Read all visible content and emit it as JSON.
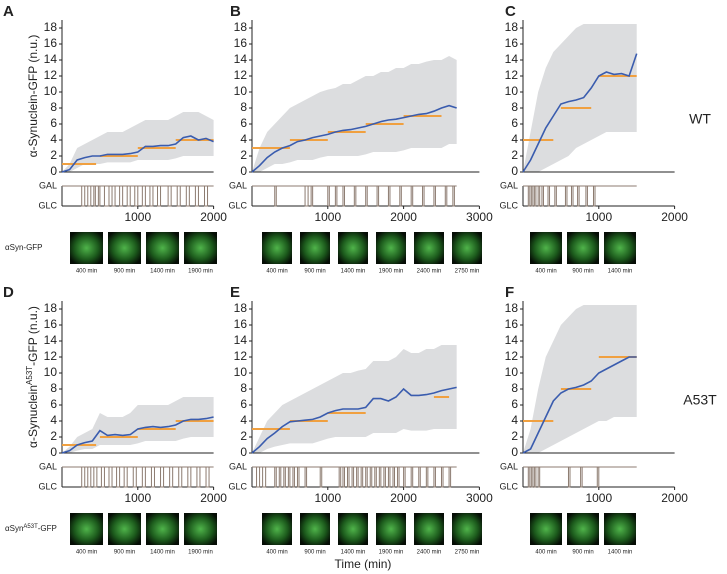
{
  "figure": {
    "xlabel": "Time (min)",
    "rows": [
      {
        "genotype": "WT",
        "ylabel": [
          "α-Synuclein-GFP (n.u.)"
        ],
        "image_label": [
          "αSyn-GFP"
        ]
      },
      {
        "genotype": "A53T",
        "ylabel": [
          "α-Synuclein",
          "A53T",
          "-GFP (n.u.)"
        ],
        "image_label": [
          "αSyn",
          "A53T",
          "-GFP"
        ]
      }
    ]
  },
  "chart_data": [
    {
      "type": "line",
      "panel": "A",
      "xlim": [
        0,
        2000
      ],
      "xticks": [
        1000,
        2000
      ],
      "ylim": [
        0,
        19
      ],
      "yticks": [
        0,
        2,
        4,
        6,
        8,
        10,
        12,
        14,
        16,
        18
      ],
      "color": "#3a5cae",
      "band_color": "#dcdddf",
      "level_color": "#f0a040",
      "x": [
        0,
        100,
        200,
        300,
        400,
        500,
        600,
        700,
        800,
        900,
        1000,
        1100,
        1200,
        1300,
        1400,
        1500,
        1600,
        1700,
        1800,
        1900,
        2000
      ],
      "values": [
        0,
        0.3,
        1.5,
        1.8,
        2,
        2,
        2.2,
        2.2,
        2.2,
        2.3,
        2.5,
        3.2,
        3.2,
        3.3,
        3.3,
        3.5,
        4.3,
        4.5,
        4,
        4.2,
        3.8
      ],
      "band_upper": [
        0,
        1,
        3,
        3.5,
        4,
        4.5,
        5,
        5,
        5,
        5.5,
        6,
        6.5,
        6.5,
        6.5,
        6.5,
        7,
        7.5,
        7.5,
        7.5,
        7,
        6.5
      ],
      "band_lower": [
        0,
        0,
        0.5,
        1,
        1,
        1,
        1.2,
        1.2,
        1.2,
        1.2,
        1.5,
        1.5,
        1.5,
        1.5,
        1.5,
        1.7,
        2,
        2,
        2,
        2,
        2
      ],
      "levels": [
        {
          "start": 0,
          "end": 450,
          "value": 1
        },
        {
          "start": 500,
          "end": 1000,
          "value": 2
        },
        {
          "start": 1000,
          "end": 1500,
          "value": 3
        },
        {
          "start": 1500,
          "end": 2000,
          "value": 4
        }
      ],
      "switch_labels": [
        "GAL",
        "GLC"
      ],
      "pulses": [
        [
          260,
          300
        ],
        [
          340,
          380
        ],
        [
          420,
          440
        ],
        [
          480,
          500
        ],
        [
          560,
          620
        ],
        [
          660,
          700
        ],
        [
          760,
          800
        ],
        [
          860,
          900
        ],
        [
          960,
          1000
        ],
        [
          1060,
          1100
        ],
        [
          1160,
          1200
        ],
        [
          1260,
          1300
        ],
        [
          1400,
          1440
        ],
        [
          1520,
          1560
        ],
        [
          1640,
          1680
        ],
        [
          1760,
          1800
        ],
        [
          1880,
          1920
        ]
      ],
      "image_times": [
        "400 min",
        "900 min",
        "1400 min",
        "1900 min"
      ]
    },
    {
      "type": "line",
      "panel": "B",
      "xlim": [
        0,
        3000
      ],
      "xticks": [
        1000,
        2000,
        3000
      ],
      "ylim": [
        0,
        19
      ],
      "yticks": [
        0,
        2,
        4,
        6,
        8,
        10,
        12,
        14,
        16,
        18
      ],
      "color": "#3a5cae",
      "band_color": "#dcdddf",
      "level_color": "#f0a040",
      "x": [
        0,
        100,
        200,
        300,
        400,
        500,
        600,
        700,
        800,
        900,
        1000,
        1100,
        1200,
        1300,
        1400,
        1500,
        1600,
        1700,
        1800,
        1900,
        2000,
        2100,
        2200,
        2300,
        2400,
        2500,
        2600,
        2700
      ],
      "values": [
        0,
        0.8,
        1.8,
        2.5,
        3,
        3.3,
        3.8,
        4,
        4.3,
        4.5,
        4.7,
        5,
        5.2,
        5.3,
        5.5,
        5.7,
        6,
        6.3,
        6.5,
        6.6,
        6.8,
        7,
        7.2,
        7.3,
        7.6,
        8,
        8.3,
        8
      ],
      "band_upper": [
        0,
        3,
        5,
        6,
        7,
        8,
        8.5,
        9,
        9.5,
        10,
        10.3,
        10.5,
        11,
        11,
        11.5,
        12,
        12,
        12.5,
        12.5,
        13,
        13,
        13.5,
        13.5,
        13.8,
        14,
        14,
        14.5,
        14
      ],
      "band_lower": [
        0,
        0,
        0.5,
        1,
        1,
        1.2,
        1.5,
        1.5,
        1.5,
        1.8,
        2,
        2,
        2,
        2,
        2,
        2.2,
        2.5,
        2.5,
        2.5,
        2.5,
        2.7,
        3,
        3,
        3,
        3,
        3,
        3.5,
        3.5
      ],
      "levels": [
        {
          "start": 0,
          "end": 500,
          "value": 3
        },
        {
          "start": 500,
          "end": 1000,
          "value": 4
        },
        {
          "start": 1000,
          "end": 1500,
          "value": 5
        },
        {
          "start": 1500,
          "end": 2000,
          "value": 6
        },
        {
          "start": 2000,
          "end": 2500,
          "value": 7
        }
      ],
      "switch_labels": [
        "GAL",
        "GLC"
      ],
      "pulses": [
        [
          300,
          320
        ],
        [
          700,
          740
        ],
        [
          780,
          800
        ],
        [
          1000,
          1020
        ],
        [
          1100,
          1120
        ],
        [
          1200,
          1220
        ],
        [
          1350,
          1370
        ],
        [
          1500,
          1520
        ],
        [
          1650,
          1670
        ],
        [
          1800,
          1820
        ],
        [
          1950,
          1970
        ],
        [
          2100,
          2120
        ],
        [
          2250,
          2270
        ],
        [
          2400,
          2420
        ],
        [
          2550,
          2570
        ],
        [
          2650,
          2670
        ]
      ],
      "image_times": [
        "400 min",
        "900 min",
        "1400 min",
        "1900 min",
        "2400 min",
        "2750 min"
      ]
    },
    {
      "type": "line",
      "panel": "C",
      "xlim": [
        0,
        2000
      ],
      "xticks": [
        1000,
        2000
      ],
      "ylim": [
        0,
        19
      ],
      "yticks": [
        0,
        2,
        4,
        6,
        8,
        10,
        12,
        14,
        16,
        18
      ],
      "color": "#3a5cae",
      "band_color": "#dcdddf",
      "level_color": "#f0a040",
      "x": [
        0,
        100,
        200,
        300,
        400,
        500,
        600,
        700,
        800,
        900,
        1000,
        1100,
        1200,
        1300,
        1400,
        1500
      ],
      "values": [
        0,
        1.5,
        3.5,
        5.5,
        7,
        8.5,
        8.8,
        9,
        9.3,
        10.5,
        12,
        12.5,
        12.2,
        12.3,
        12,
        14.8
      ],
      "band_upper": [
        0,
        5,
        10,
        13,
        15,
        16,
        17,
        18,
        18.5,
        18.5,
        18.5,
        18.5,
        18.5,
        18.5,
        18.5,
        18.5
      ],
      "band_lower": [
        0,
        0,
        0,
        0.5,
        1,
        1.5,
        2,
        3,
        3.5,
        4,
        4.5,
        5,
        5,
        5,
        5,
        5
      ],
      "levels": [
        {
          "start": 0,
          "end": 400,
          "value": 4
        },
        {
          "start": 500,
          "end": 900,
          "value": 8
        },
        {
          "start": 1000,
          "end": 1500,
          "value": 12
        }
      ],
      "switch_labels": [
        "GAL",
        "GLC"
      ],
      "pulses": [
        [
          70,
          90
        ],
        [
          110,
          130
        ],
        [
          150,
          170
        ],
        [
          200,
          220
        ],
        [
          250,
          270
        ],
        [
          330,
          350
        ],
        [
          420,
          440
        ],
        [
          560,
          580
        ],
        [
          640,
          660
        ],
        [
          720,
          740
        ],
        [
          830,
          850
        ],
        [
          930,
          950
        ]
      ],
      "image_times": [
        "400 min",
        "900 min",
        "1400 min"
      ]
    },
    {
      "type": "line",
      "panel": "D",
      "xlim": [
        0,
        2000
      ],
      "xticks": [
        1000,
        2000
      ],
      "ylim": [
        0,
        19
      ],
      "yticks": [
        0,
        2,
        4,
        6,
        8,
        10,
        12,
        14,
        16,
        18
      ],
      "color": "#3a5cae",
      "band_color": "#dcdddf",
      "level_color": "#f0a040",
      "x": [
        0,
        100,
        200,
        300,
        400,
        500,
        600,
        700,
        800,
        900,
        1000,
        1100,
        1200,
        1300,
        1400,
        1500,
        1600,
        1700,
        1800,
        1900,
        2000
      ],
      "values": [
        0,
        0.3,
        1,
        1.3,
        1.5,
        2.8,
        2.2,
        2.3,
        2.2,
        2.3,
        3,
        3.2,
        3.3,
        3.2,
        3.3,
        3.5,
        4,
        4.2,
        4.2,
        4.3,
        4.5
      ],
      "band_upper": [
        0,
        0.8,
        2,
        2.5,
        3,
        5,
        4.5,
        4.5,
        4.5,
        5,
        6,
        6,
        6,
        6,
        6,
        6.5,
        7,
        7,
        7,
        7,
        7
      ],
      "band_lower": [
        0,
        0,
        0.3,
        0.5,
        0.5,
        1,
        1,
        1,
        1,
        1,
        1.2,
        1.5,
        1.5,
        1.5,
        1.5,
        1.5,
        1.8,
        2,
        2,
        2,
        2
      ],
      "levels": [
        {
          "start": 0,
          "end": 450,
          "value": 1
        },
        {
          "start": 500,
          "end": 1000,
          "value": 2
        },
        {
          "start": 1000,
          "end": 1500,
          "value": 3
        },
        {
          "start": 1500,
          "end": 2000,
          "value": 4
        }
      ],
      "switch_labels": [
        "GAL",
        "GLC"
      ],
      "pulses": [
        [
          260,
          300
        ],
        [
          340,
          380
        ],
        [
          420,
          460
        ],
        [
          520,
          560
        ],
        [
          620,
          660
        ],
        [
          720,
          760
        ],
        [
          820,
          860
        ],
        [
          940,
          980
        ],
        [
          1060,
          1100
        ],
        [
          1180,
          1220
        ],
        [
          1300,
          1340
        ],
        [
          1420,
          1460
        ],
        [
          1540,
          1580
        ],
        [
          1660,
          1700
        ],
        [
          1780,
          1820
        ],
        [
          1900,
          1940
        ]
      ],
      "image_times": [
        "400 min",
        "900 min",
        "1400 min",
        "1900 min"
      ]
    },
    {
      "type": "line",
      "panel": "E",
      "xlim": [
        0,
        3000
      ],
      "xticks": [
        1000,
        2000,
        3000
      ],
      "ylim": [
        0,
        19
      ],
      "yticks": [
        0,
        2,
        4,
        6,
        8,
        10,
        12,
        14,
        16,
        18
      ],
      "color": "#3a5cae",
      "band_color": "#dcdddf",
      "level_color": "#f0a040",
      "x": [
        0,
        100,
        200,
        300,
        400,
        500,
        600,
        700,
        800,
        900,
        1000,
        1100,
        1200,
        1300,
        1400,
        1500,
        1600,
        1700,
        1800,
        1900,
        2000,
        2100,
        2200,
        2300,
        2400,
        2500,
        2600,
        2700
      ],
      "values": [
        0,
        0.8,
        1.8,
        2.5,
        3.3,
        3.9,
        4,
        4.1,
        4.2,
        4.5,
        5,
        5.3,
        5.5,
        5.5,
        5.5,
        5.7,
        6.8,
        6.8,
        6.5,
        7,
        8,
        7.2,
        7.2,
        7.3,
        7.5,
        7.8,
        8,
        8.2
      ],
      "band_upper": [
        0,
        2,
        4,
        5,
        6,
        6.5,
        7,
        7.5,
        8,
        8.5,
        9,
        9.5,
        10,
        10,
        10.3,
        10.5,
        11.5,
        11.5,
        11.5,
        12,
        13,
        12.5,
        12.5,
        13,
        13,
        13.5,
        13.5,
        13.5
      ],
      "band_lower": [
        0,
        0,
        0.5,
        0.8,
        1,
        1.2,
        1.2,
        1.2,
        1.2,
        1.5,
        1.8,
        2,
        2,
        2,
        2,
        2,
        2.5,
        2.5,
        2.5,
        2.5,
        3,
        2.8,
        2.8,
        2.8,
        3,
        3,
        3,
        3
      ],
      "levels": [
        {
          "start": 0,
          "end": 500,
          "value": 3
        },
        {
          "start": 500,
          "end": 1000,
          "value": 4
        },
        {
          "start": 1000,
          "end": 1500,
          "value": 5
        },
        {
          "start": 2400,
          "end": 2600,
          "value": 7
        }
      ],
      "switch_labels": [
        "GAL",
        "GLC"
      ],
      "pulses": [
        [
          60,
          100
        ],
        [
          140,
          180
        ],
        [
          300,
          320
        ],
        [
          360,
          380
        ],
        [
          420,
          440
        ],
        [
          480,
          500
        ],
        [
          540,
          560
        ],
        [
          600,
          620
        ],
        [
          700,
          720
        ],
        [
          900,
          920
        ],
        [
          1150,
          1170
        ],
        [
          1200,
          1220
        ],
        [
          1260,
          1280
        ],
        [
          1320,
          1340
        ],
        [
          1380,
          1400
        ],
        [
          1440,
          1460
        ],
        [
          1500,
          1520
        ],
        [
          1560,
          1580
        ],
        [
          1620,
          1640
        ],
        [
          1680,
          1700
        ],
        [
          1740,
          1760
        ],
        [
          1800,
          1820
        ],
        [
          1860,
          1880
        ],
        [
          1920,
          1940
        ],
        [
          2000,
          2020
        ],
        [
          2100,
          2120
        ],
        [
          2200,
          2220
        ],
        [
          2300,
          2320
        ],
        [
          2400,
          2420
        ],
        [
          2500,
          2520
        ],
        [
          2600,
          2620
        ]
      ],
      "image_times": [
        "400 min",
        "900 min",
        "1400 min",
        "1900 min",
        "2400 min",
        "2750 min"
      ]
    },
    {
      "type": "line",
      "panel": "F",
      "xlim": [
        0,
        2000
      ],
      "xticks": [
        1000,
        2000
      ],
      "ylim": [
        0,
        19
      ],
      "yticks": [
        0,
        2,
        4,
        6,
        8,
        10,
        12,
        14,
        16,
        18
      ],
      "color": "#3a5cae",
      "band_color": "#dcdddf",
      "level_color": "#f0a040",
      "x": [
        0,
        100,
        200,
        300,
        400,
        500,
        600,
        700,
        800,
        900,
        1000,
        1100,
        1200,
        1300,
        1400,
        1500
      ],
      "values": [
        0,
        0.5,
        2.5,
        4.5,
        6.5,
        7.5,
        8,
        8.2,
        8.5,
        9,
        10,
        10.5,
        11,
        11.5,
        12,
        12
      ],
      "band_upper": [
        0,
        3,
        8,
        12,
        14,
        16,
        17,
        18,
        18.5,
        18.5,
        18.5,
        18.5,
        18.5,
        18.5,
        18.5,
        18.5
      ],
      "band_lower": [
        0,
        0,
        0,
        0.5,
        1,
        1.5,
        2,
        2.5,
        3,
        3.5,
        4,
        4,
        4.5,
        4.5,
        4.5,
        4.5
      ],
      "levels": [
        {
          "start": 0,
          "end": 400,
          "value": 4
        },
        {
          "start": 500,
          "end": 900,
          "value": 8
        },
        {
          "start": 1000,
          "end": 1500,
          "value": 12
        }
      ],
      "switch_labels": [
        "GAL",
        "GLC"
      ],
      "pulses": [
        [
          70,
          90
        ],
        [
          110,
          130
        ],
        [
          150,
          170
        ],
        [
          200,
          220
        ],
        [
          600,
          620
        ],
        [
          760,
          780
        ],
        [
          980,
          1000
        ]
      ],
      "image_times": [
        "400 min",
        "900 min",
        "1400 min"
      ]
    }
  ]
}
